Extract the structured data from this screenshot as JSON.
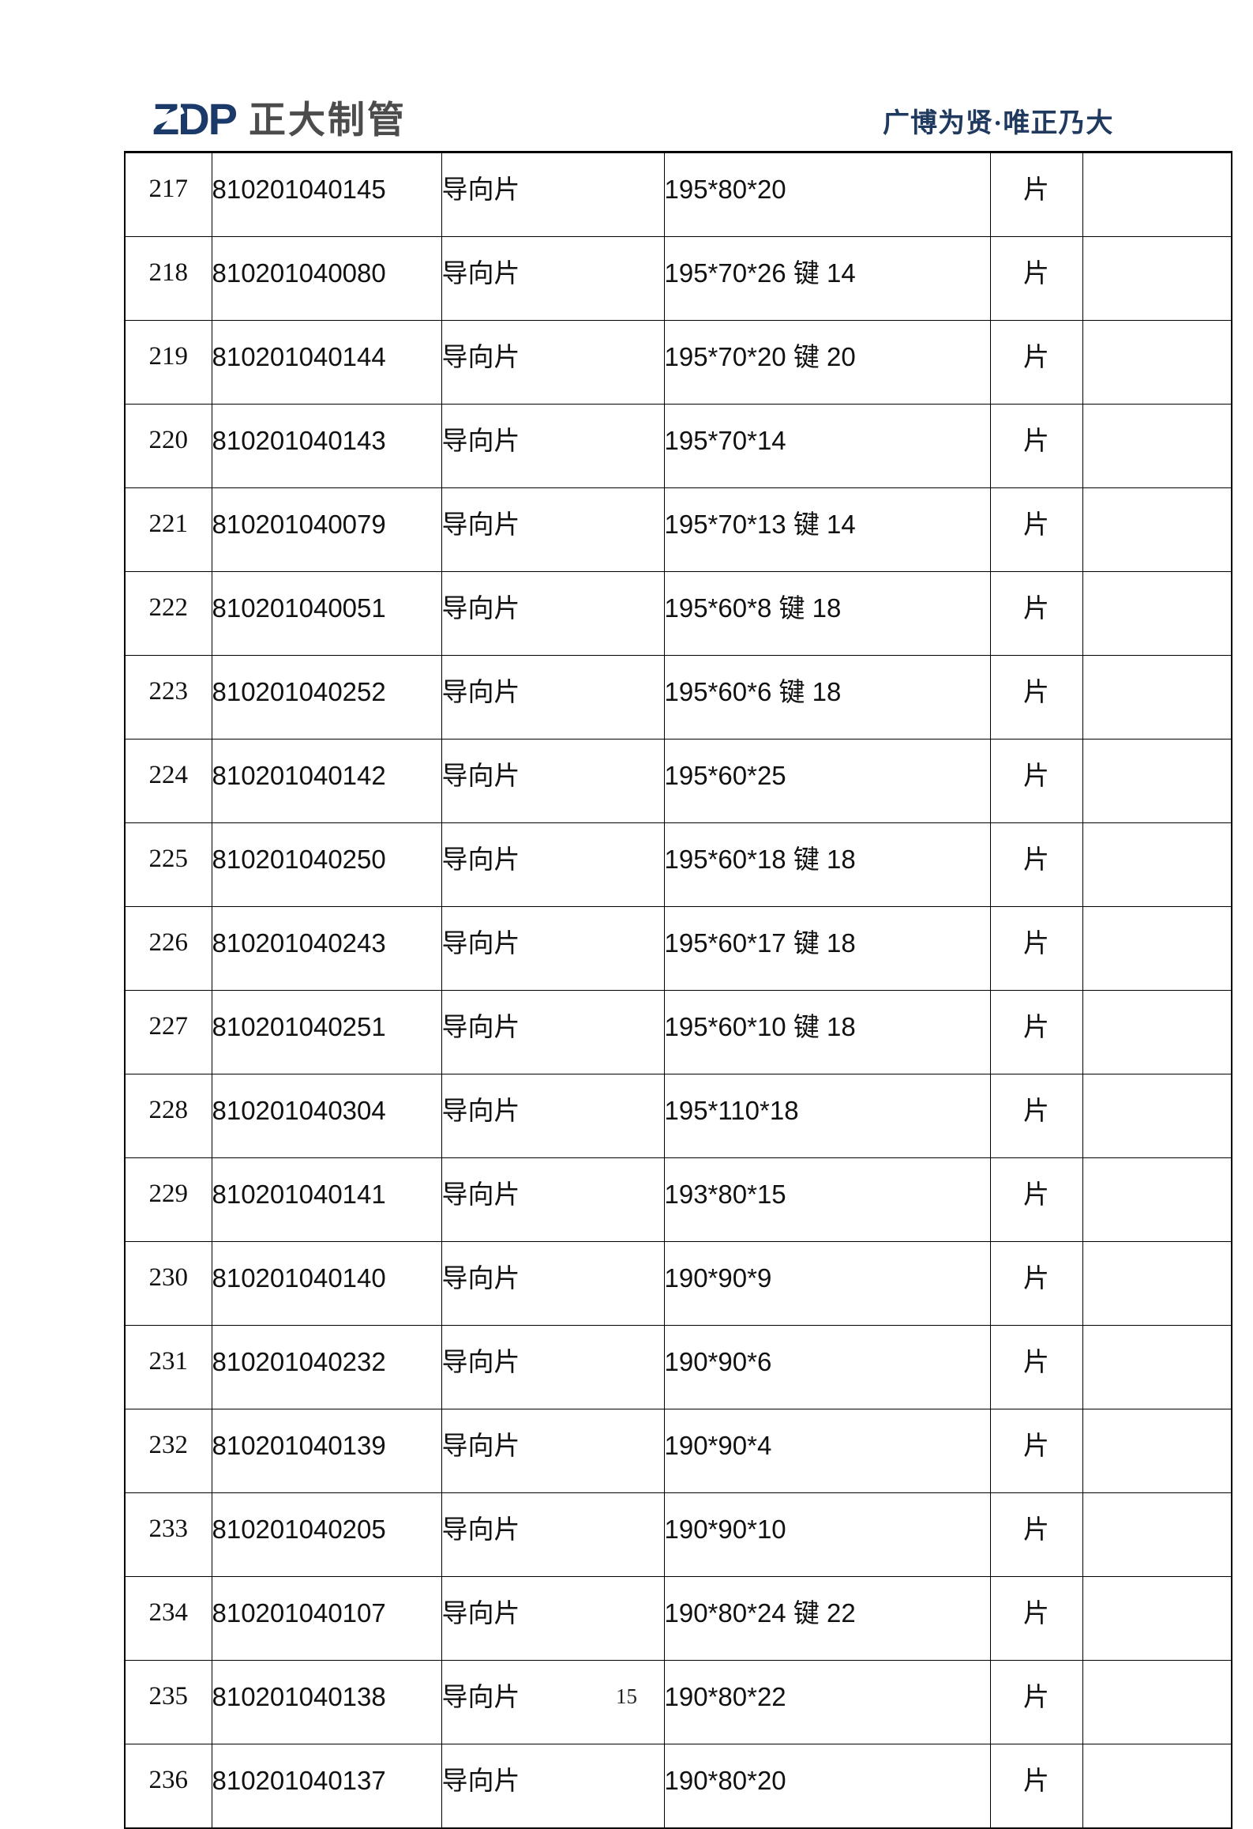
{
  "header": {
    "logo": {
      "zdp": "ZDP",
      "company": "正大制管",
      "brand_color": "#1b3a69",
      "company_color": "#4c4c4c"
    },
    "slogan": {
      "text": "广博为贤·唯正乃大",
      "color": "#20395e"
    }
  },
  "table": {
    "rows": [
      {
        "no": "217",
        "code": "810201040145",
        "name": "导向片",
        "spec": "195*80*20",
        "unit": "片",
        "note": ""
      },
      {
        "no": "218",
        "code": "810201040080",
        "name": "导向片",
        "spec": "195*70*26 键 14",
        "unit": "片",
        "note": ""
      },
      {
        "no": "219",
        "code": "810201040144",
        "name": "导向片",
        "spec": "195*70*20 键 20",
        "unit": "片",
        "note": ""
      },
      {
        "no": "220",
        "code": "810201040143",
        "name": "导向片",
        "spec": "195*70*14",
        "unit": "片",
        "note": ""
      },
      {
        "no": "221",
        "code": "810201040079",
        "name": "导向片",
        "spec": "195*70*13 键 14",
        "unit": "片",
        "note": ""
      },
      {
        "no": "222",
        "code": "810201040051",
        "name": "导向片",
        "spec": "195*60*8 键 18",
        "unit": "片",
        "note": ""
      },
      {
        "no": "223",
        "code": "810201040252",
        "name": "导向片",
        "spec": "195*60*6 键 18",
        "unit": "片",
        "note": ""
      },
      {
        "no": "224",
        "code": "810201040142",
        "name": "导向片",
        "spec": "195*60*25",
        "unit": "片",
        "note": ""
      },
      {
        "no": "225",
        "code": "810201040250",
        "name": "导向片",
        "spec": "195*60*18 键 18",
        "unit": "片",
        "note": ""
      },
      {
        "no": "226",
        "code": "810201040243",
        "name": "导向片",
        "spec": "195*60*17 键 18",
        "unit": "片",
        "note": ""
      },
      {
        "no": "227",
        "code": "810201040251",
        "name": "导向片",
        "spec": "195*60*10 键 18",
        "unit": "片",
        "note": ""
      },
      {
        "no": "228",
        "code": "810201040304",
        "name": "导向片",
        "spec": "195*110*18",
        "unit": "片",
        "note": ""
      },
      {
        "no": "229",
        "code": "810201040141",
        "name": "导向片",
        "spec": "193*80*15",
        "unit": "片",
        "note": ""
      },
      {
        "no": "230",
        "code": "810201040140",
        "name": "导向片",
        "spec": "190*90*9",
        "unit": "片",
        "note": ""
      },
      {
        "no": "231",
        "code": "810201040232",
        "name": "导向片",
        "spec": "190*90*6",
        "unit": "片",
        "note": ""
      },
      {
        "no": "232",
        "code": "810201040139",
        "name": "导向片",
        "spec": "190*90*4",
        "unit": "片",
        "note": ""
      },
      {
        "no": "233",
        "code": "810201040205",
        "name": "导向片",
        "spec": "190*90*10",
        "unit": "片",
        "note": ""
      },
      {
        "no": "234",
        "code": "810201040107",
        "name": "导向片",
        "spec": "190*80*24 键 22",
        "unit": "片",
        "note": ""
      },
      {
        "no": "235",
        "code": "810201040138",
        "name": "导向片",
        "spec": "190*80*22",
        "unit": "片",
        "note": ""
      },
      {
        "no": "236",
        "code": "810201040137",
        "name": "导向片",
        "spec": "190*80*20",
        "unit": "片",
        "note": ""
      }
    ]
  },
  "footer": {
    "page_number": "15"
  }
}
